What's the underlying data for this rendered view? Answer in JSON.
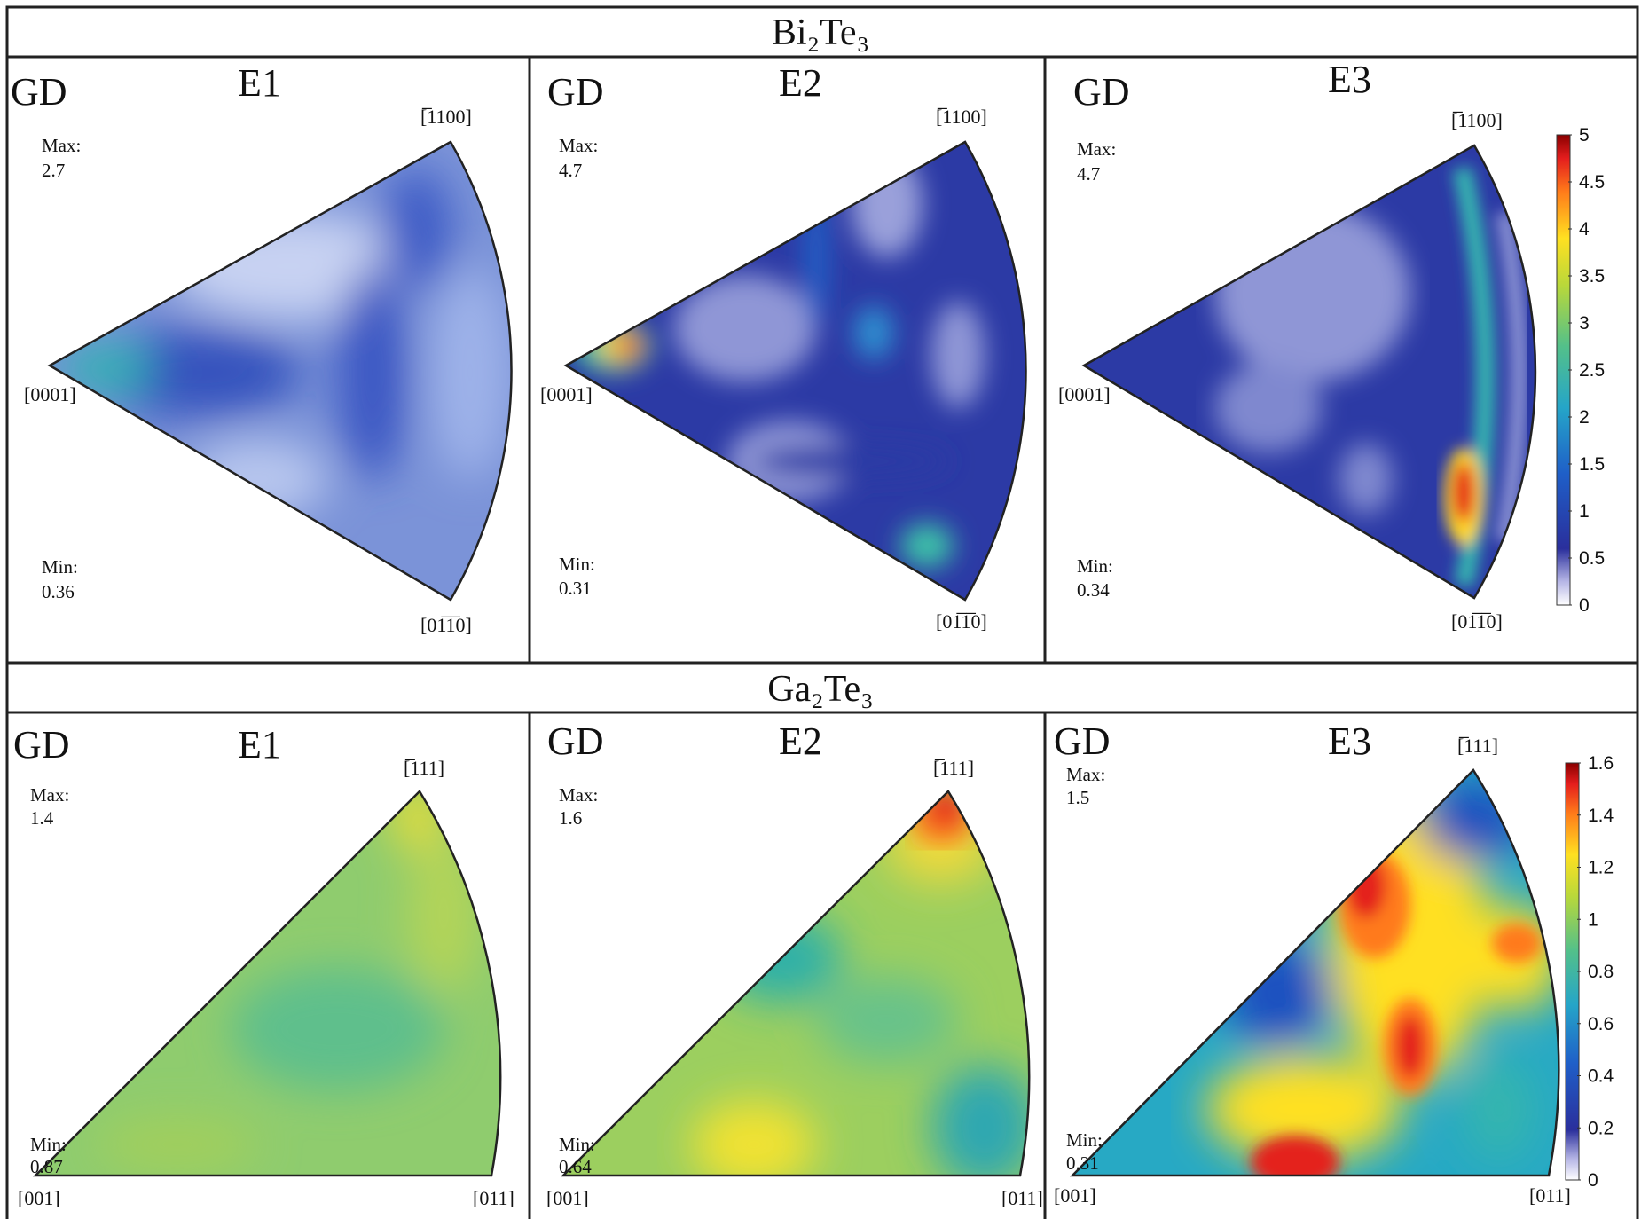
{
  "rows": [
    {
      "title": "Bi₂Te₃",
      "colorbar": {
        "ticks": [
          "0",
          "0.5",
          "1",
          "1.5",
          "2",
          "2.5",
          "3",
          "3.5",
          "4",
          "4.5",
          "5"
        ]
      },
      "panels": [
        {
          "label": "E1",
          "gd": "GD",
          "max_label": "Max:",
          "max": "2.7",
          "min_label": "Min:",
          "min": "0.36",
          "dir_top": "[̅1100]",
          "dir_left": "[0001]",
          "dir_bottom": "[01̅1̅0]"
        },
        {
          "label": "E2",
          "gd": "GD",
          "max_label": "Max:",
          "max": "4.7",
          "min_label": "Min:",
          "min": "0.31",
          "dir_top": "[̅1100]",
          "dir_left": "[0001]",
          "dir_bottom": "[01̅1̅0]"
        },
        {
          "label": "E3",
          "gd": "GD",
          "max_label": "Max:",
          "max": "4.7",
          "min_label": "Min:",
          "min": "0.34",
          "dir_top": "[̅1100]",
          "dir_left": "[0001]",
          "dir_bottom": "[01̅1̅0]"
        }
      ]
    },
    {
      "title": "Ga₂Te₃",
      "colorbar": {
        "ticks": [
          "0",
          "0.2",
          "0.4",
          "0.6",
          "0.8",
          "1",
          "1.2",
          "1.4",
          "1.6"
        ]
      },
      "panels": [
        {
          "label": "E1",
          "gd": "GD",
          "max_label": "Max:",
          "max": "1.4",
          "min_label": "Min:",
          "min": "0.87",
          "dir_top": "[̅111]",
          "dir_left": "[001]",
          "dir_right": "[011]"
        },
        {
          "label": "E2",
          "gd": "GD",
          "max_label": "Max:",
          "max": "1.6",
          "min_label": "Min:",
          "min": "0.64",
          "dir_top": "[̅111]",
          "dir_left": "[001]",
          "dir_right": "[011]"
        },
        {
          "label": "E3",
          "gd": "GD",
          "max_label": "Max:",
          "max": "1.5",
          "min_label": "Min:",
          "min": "0.31",
          "dir_top": "[̅111]",
          "dir_left": "[001]",
          "dir_right": "[011]"
        }
      ]
    }
  ],
  "colors": {
    "jet_low": "#f6f6ff",
    "jet_mid": "#2d3da8",
    "jet_high": "#8a0000",
    "frame": "#222222"
  }
}
